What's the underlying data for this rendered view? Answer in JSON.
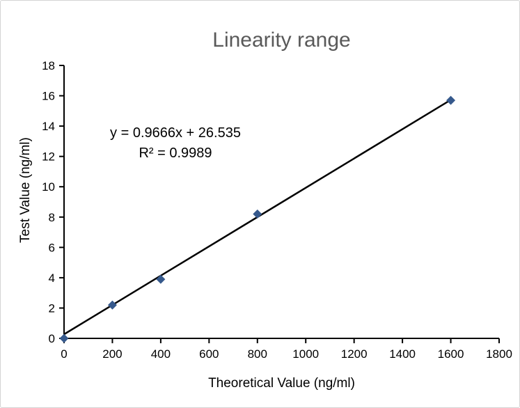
{
  "frame": {
    "background": "#ffffff",
    "border_color": "#d3d3d3"
  },
  "chart_data": {
    "type": "scatter",
    "title": "Linearity range",
    "title_color": "#595959",
    "xlabel": "Theoretical Value (ng/ml)",
    "ylabel": "Test Value (ng/ml)",
    "series": [
      {
        "name": "Test Value",
        "x": [
          0,
          200,
          400,
          800,
          1600
        ],
        "y": [
          0,
          2.2,
          3.9,
          8.2,
          15.7
        ],
        "marker": {
          "shape": "diamond",
          "color": "#36598C",
          "size": 6.5
        }
      }
    ],
    "trendline": {
      "x": [
        0,
        1600
      ],
      "y": [
        0.27,
        15.73
      ],
      "color": "#000000",
      "equation": "y = 0.9666x + 26.535",
      "r_squared": "R² = 0.9989"
    },
    "xlim": [
      0,
      1800
    ],
    "ylim": [
      0,
      18
    ],
    "xticks": [
      0,
      200,
      400,
      600,
      800,
      1000,
      1200,
      1400,
      1600,
      1800
    ],
    "yticks": [
      0,
      2,
      4,
      6,
      8,
      10,
      12,
      14,
      16,
      18
    ],
    "grid": false,
    "legend": false,
    "axis_color": "#000000",
    "tick_label_color": "#000000"
  }
}
